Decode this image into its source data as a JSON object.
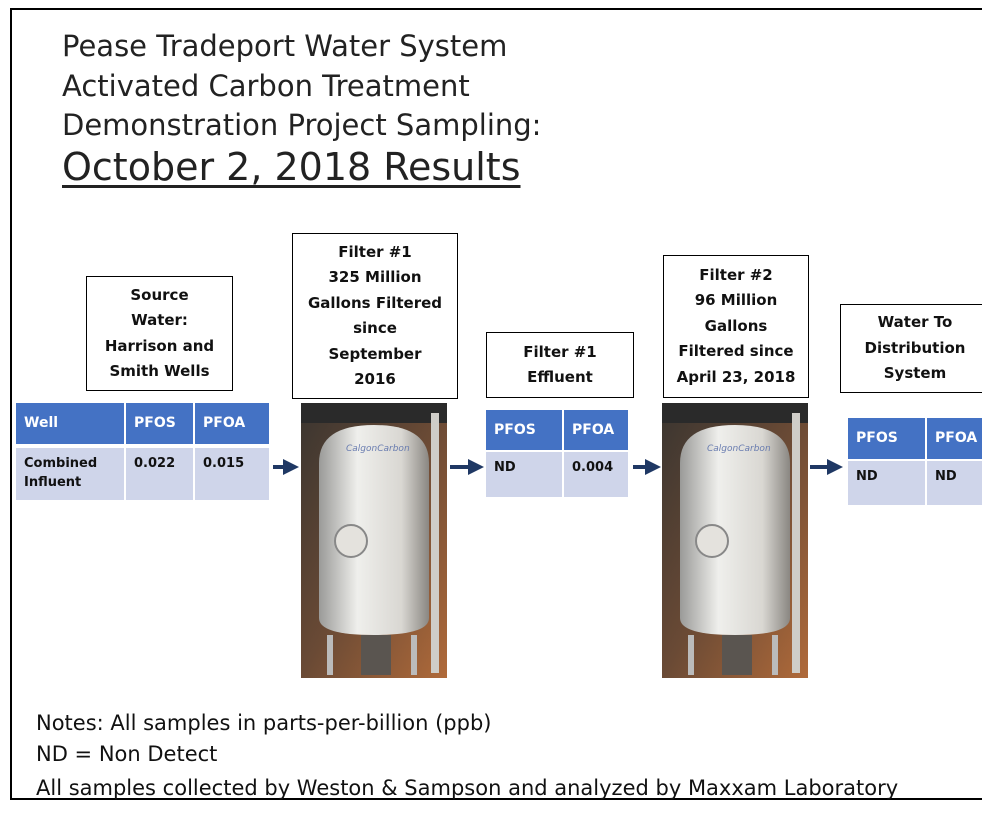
{
  "title": {
    "lines": [
      "Pease Tradeport Water System",
      "Activated Carbon Treatment",
      "Demonstration Project Sampling:"
    ],
    "date": "October 2, 2018 Results"
  },
  "boxes": [
    {
      "lines": [
        "Source",
        "Water:",
        "Harrison and",
        "Smith Wells"
      ]
    },
    {
      "lines": [
        "Filter #1",
        "325 Million",
        "Gallons Filtered",
        "since",
        "September",
        "2016"
      ]
    },
    {
      "lines": [
        "Filter #1",
        "Effluent"
      ]
    },
    {
      "lines": [
        "Filter #2",
        "96 Million",
        "Gallons",
        "Filtered since",
        "April 23, 2018"
      ]
    },
    {
      "lines": [
        "Water To",
        "Distribution",
        "System"
      ]
    }
  ],
  "tables": [
    {
      "header": [
        "Well",
        "PFOS",
        "PFOA"
      ],
      "rows": [
        [
          "Combined Influent",
          "0.022",
          "0.015"
        ]
      ]
    },
    {
      "header": [
        "PFOS",
        "PFOA"
      ],
      "rows": [
        [
          "ND",
          "0.004"
        ]
      ]
    },
    {
      "header": [
        "PFOS",
        "PFOA"
      ],
      "rows": [
        [
          "ND",
          "ND"
        ]
      ]
    }
  ],
  "notes": [
    "Notes: All samples in parts-per-billion (ppb)",
    "ND = Non Detect",
    "All samples collected by Weston & Sampson and analyzed by Maxxam Laboratory"
  ]
}
